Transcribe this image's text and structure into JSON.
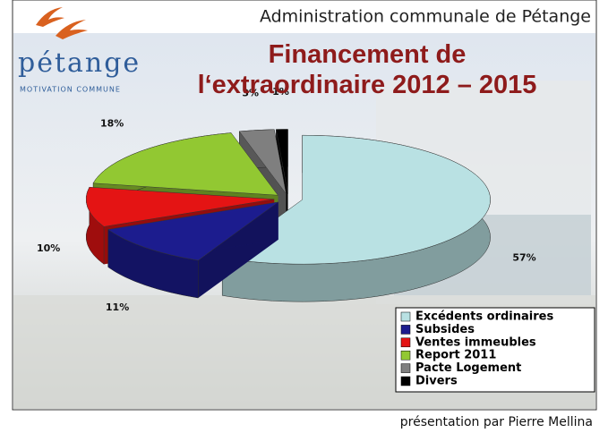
{
  "header": {
    "organisation": "Administration communale de Pétange",
    "logo_name": "pétange",
    "logo_tagline": "MOTIVATION COMMUNE"
  },
  "chart_data": {
    "type": "pie",
    "title_lines": [
      "Financement de",
      "l‘extraordinaire 2012 – 2015"
    ],
    "categories": [
      "Excédents ordinaires",
      "Subsides",
      "Ventes immeubles",
      "Report 2011",
      "Pacte Logement",
      "Divers"
    ],
    "values": [
      57,
      11,
      10,
      18,
      3,
      1
    ],
    "value_labels": [
      "57%",
      "11%",
      "10%",
      "18%",
      "3%",
      "1%"
    ],
    "colors": [
      "#b9e1e3",
      "#1c1c8e",
      "#e41414",
      "#92c832",
      "#7f7f7f",
      "#000000"
    ],
    "legend": "bottom-right"
  },
  "footer": {
    "credit": "présentation par Pierre Mellina"
  }
}
